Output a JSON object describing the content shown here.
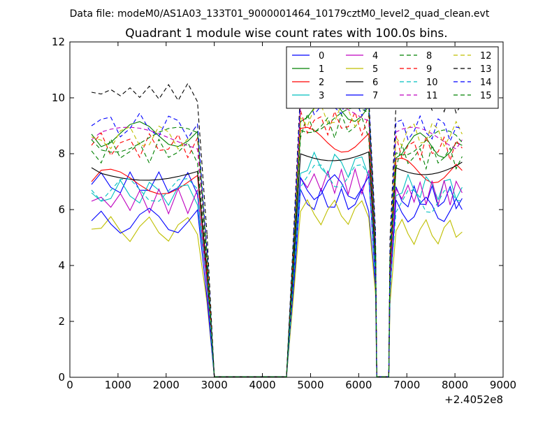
{
  "figure": {
    "suptitle": "Data file: modeM0/AS1A03_133T01_9000001464_10179cztM0_level2_quad_clean.evt",
    "title": "Quadrant 1 module wise count rates with 100.0s bins.",
    "x_offset_label": "+2.4052e8"
  },
  "chart_data": {
    "type": "line",
    "title": "Quadrant 1 module wise count rates with 100.0s bins.",
    "xlabel": "",
    "ylabel": "",
    "xlim": [
      0,
      9000
    ],
    "ylim": [
      0,
      12
    ],
    "x_ticks": [
      0,
      1000,
      2000,
      3000,
      4000,
      5000,
      6000,
      7000,
      8000,
      9000
    ],
    "y_ticks": [
      0,
      2,
      4,
      6,
      8,
      10,
      12
    ],
    "x_offset": 240520000,
    "grid": false,
    "legend_position": "top-right",
    "legend_columns": 4,
    "segments": [
      {
        "start": 450,
        "end": 2850
      },
      {
        "start": 2850,
        "end": 4650
      },
      {
        "start": 4650,
        "end": 6350
      },
      {
        "start": 6350,
        "end": 6650
      },
      {
        "start": 6650,
        "end": 8150
      }
    ],
    "series": [
      {
        "name": "0",
        "color": "#0000ff",
        "dash": "solid",
        "segment_levels": [
          6.9,
          0.02,
          6.3,
          0.02,
          6.4
        ]
      },
      {
        "name": "1",
        "color": "#008000",
        "dash": "solid",
        "segment_levels": [
          8.7,
          0.02,
          9.6,
          0.02,
          8.3
        ]
      },
      {
        "name": "2",
        "color": "#ff0000",
        "dash": "solid",
        "segment_levels": [
          7.0,
          0.02,
          8.5,
          0.02,
          7.4
        ]
      },
      {
        "name": "3",
        "color": "#00bfbf",
        "dash": "solid",
        "segment_levels": [
          6.6,
          0.02,
          7.6,
          0.02,
          6.8
        ]
      },
      {
        "name": "4",
        "color": "#bf00bf",
        "dash": "solid",
        "segment_levels": [
          6.3,
          0.02,
          7.0,
          0.02,
          6.6
        ]
      },
      {
        "name": "5",
        "color": "#bfbf00",
        "dash": "solid",
        "segment_levels": [
          5.3,
          0.02,
          5.9,
          0.02,
          5.2
        ]
      },
      {
        "name": "6",
        "color": "#000000",
        "dash": "solid",
        "segment_levels": [
          7.5,
          0.02,
          8.2,
          0.02,
          7.7
        ]
      },
      {
        "name": "7",
        "color": "#0000ff",
        "dash": "solid",
        "segment_levels": [
          5.6,
          0.02,
          6.8,
          0.02,
          6.0
        ]
      },
      {
        "name": "8",
        "color": "#008000",
        "dash": "dashed",
        "segment_levels": [
          8.1,
          0.02,
          9.0,
          0.02,
          7.9
        ]
      },
      {
        "name": "9",
        "color": "#ff0000",
        "dash": "dashed",
        "segment_levels": [
          8.3,
          0.02,
          9.1,
          0.02,
          8.2
        ]
      },
      {
        "name": "10",
        "color": "#00bfbf",
        "dash": "dashed",
        "segment_levels": [
          6.7,
          0.02,
          7.2,
          0.02,
          6.3
        ]
      },
      {
        "name": "11",
        "color": "#bf00bf",
        "dash": "dashed",
        "segment_levels": [
          8.5,
          0.02,
          9.5,
          0.02,
          8.5
        ]
      },
      {
        "name": "12",
        "color": "#bfbf00",
        "dash": "dashed",
        "segment_levels": [
          8.6,
          0.02,
          9.4,
          0.02,
          8.7
        ]
      },
      {
        "name": "13",
        "color": "#000000",
        "dash": "dashed",
        "segment_levels": [
          10.2,
          0.02,
          10.4,
          0.02,
          9.8
        ]
      },
      {
        "name": "14",
        "color": "#0000ff",
        "dash": "dashed",
        "segment_levels": [
          9.0,
          0.02,
          9.8,
          0.02,
          8.9
        ]
      },
      {
        "name": "15",
        "color": "#008000",
        "dash": "dashed",
        "segment_levels": [
          8.5,
          0.02,
          9.2,
          0.02,
          8.4
        ]
      }
    ]
  }
}
